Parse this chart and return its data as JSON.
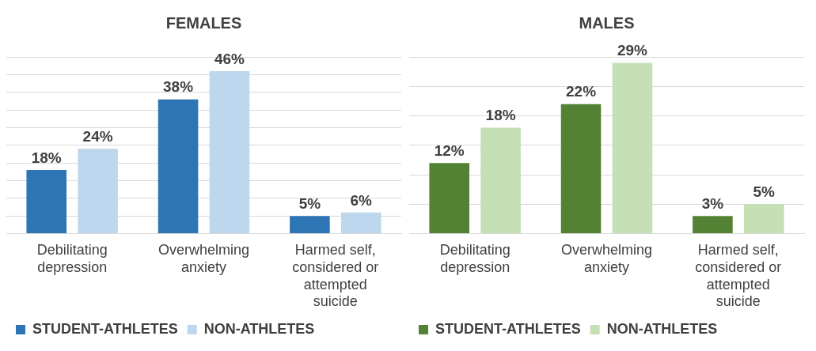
{
  "chart_data": [
    {
      "type": "bar",
      "title": "FEMALES",
      "categories": [
        "Debilitating depression",
        "Overwhelming anxiety",
        "Harmed self, considered or attempted suicide"
      ],
      "series": [
        {
          "name": "STUDENT-ATHLETES",
          "color": "#2e75b6",
          "values": [
            18,
            38,
            5
          ],
          "value_labels": [
            "18%",
            "38%",
            "5%"
          ]
        },
        {
          "name": "NON-ATHLETES",
          "color": "#bdd7ee",
          "values": [
            24,
            46,
            6
          ],
          "value_labels": [
            "24%",
            "46%",
            "6%"
          ]
        }
      ],
      "tick_labels": "x",
      "grid": "y",
      "legend": "bottom"
    },
    {
      "type": "bar",
      "title": "MALES",
      "categories": [
        "Debilitating depression",
        "Overwhelming anxiety",
        "Harmed self, considered or attempted suicide"
      ],
      "series": [
        {
          "name": "STUDENT-ATHLETES",
          "color": "#548235",
          "values": [
            12,
            22,
            3
          ],
          "value_labels": [
            "12%",
            "22%",
            "3%"
          ]
        },
        {
          "name": "NON-ATHLETES",
          "color": "#c5e0b4",
          "values": [
            18,
            29,
            5
          ],
          "value_labels": [
            "18%",
            "29%",
            "5%"
          ]
        }
      ],
      "tick_labels": "x",
      "grid": "y",
      "legend": "bottom"
    }
  ]
}
